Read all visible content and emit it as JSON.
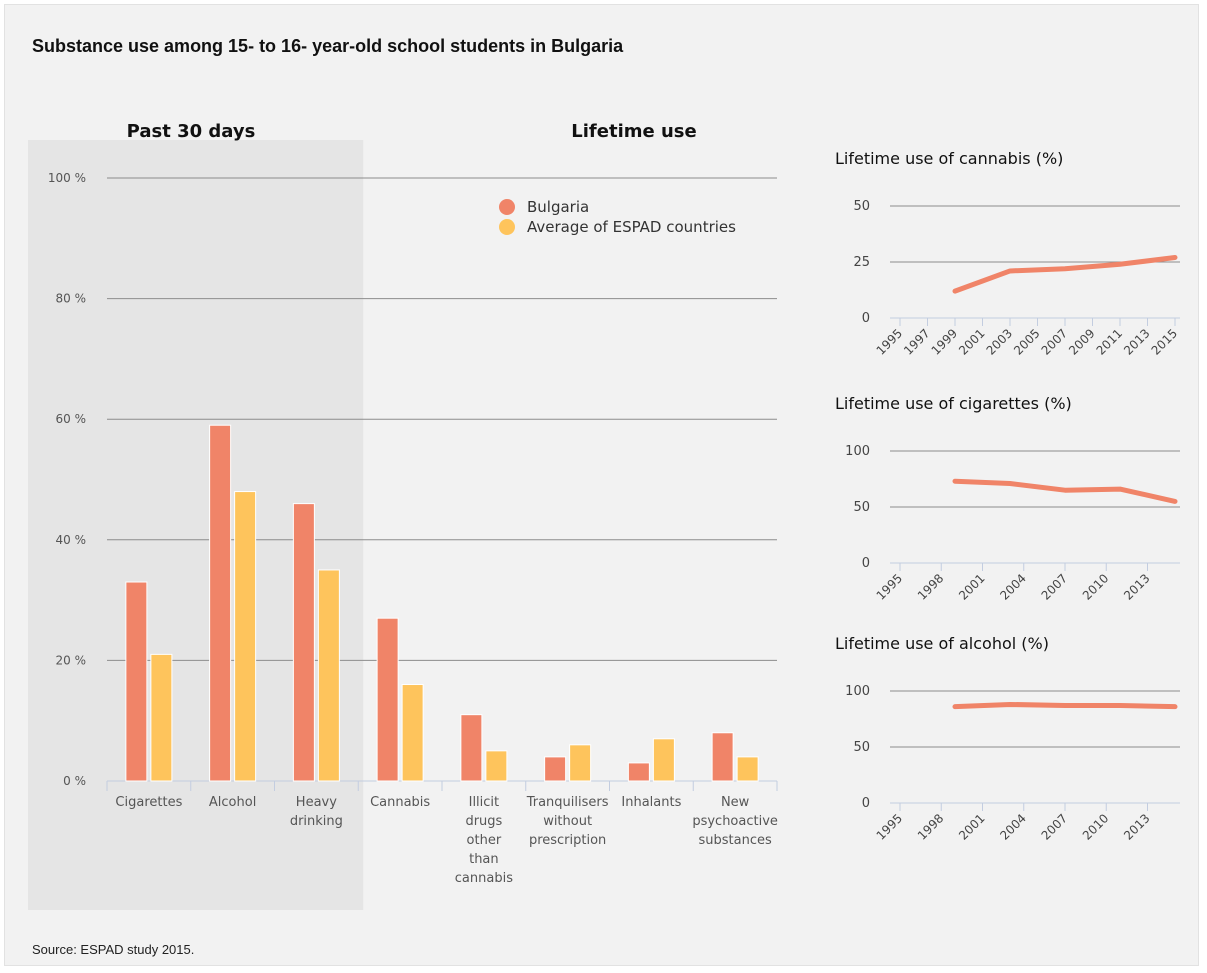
{
  "title": "Substance use among 15- to 16- year-old school students in Bulgaria",
  "source": "Source: ESPAD study 2015.",
  "colors": {
    "bulgaria": "#f08468",
    "espad": "#fec45c",
    "line": "#f08468",
    "shade": "#e5e5e5",
    "grid": "#8c8c8c",
    "axis": "#c3cde0"
  },
  "chart_data": [
    {
      "type": "bar",
      "section_labels": [
        "Past 30 days",
        "Lifetime use"
      ],
      "categories": [
        [
          "Cigarettes"
        ],
        [
          "Alcohol"
        ],
        [
          "Heavy",
          "drinking"
        ],
        [
          "Cannabis"
        ],
        [
          "Illicit",
          "drugs",
          "other",
          "than",
          "cannabis"
        ],
        [
          "Tranquilisers",
          "without",
          "prescription"
        ],
        [
          "Inhalants"
        ],
        [
          "New",
          "psychoactive",
          "substances"
        ]
      ],
      "series": [
        {
          "name": "Bulgaria",
          "values": [
            33,
            59,
            46,
            27,
            11,
            4,
            3,
            8
          ]
        },
        {
          "name": "Average of ESPAD countries",
          "values": [
            21,
            48,
            35,
            16,
            5,
            6,
            7,
            4
          ]
        }
      ],
      "y_ticks": [
        "0 %",
        "20 %",
        "40 %",
        "60 %",
        "80 %",
        "100 %"
      ],
      "ylim": [
        0,
        100
      ],
      "grid": true,
      "legend": "top-right"
    },
    {
      "type": "line",
      "title": "Lifetime use of cannabis (%)",
      "x_ticks": [
        "1995",
        "1997",
        "1999",
        "2001",
        "2003",
        "2005",
        "2007",
        "2009",
        "2011",
        "2013",
        "2015"
      ],
      "x": [
        1999,
        2003,
        2007,
        2011,
        2015
      ],
      "values": [
        12,
        21,
        22,
        24,
        27
      ],
      "y_ticks": [
        "0",
        "25",
        "50"
      ],
      "ylim": [
        0,
        50
      ],
      "xlim": [
        1995,
        2015
      ]
    },
    {
      "type": "line",
      "title": "Lifetime use of cigarettes (%)",
      "x_ticks": [
        "1995",
        "1998",
        "2001",
        "2004",
        "2007",
        "2010",
        "2013"
      ],
      "x": [
        1999,
        2003,
        2007,
        2011,
        2015
      ],
      "values": [
        73,
        71,
        65,
        66,
        55
      ],
      "y_ticks": [
        "0",
        "50",
        "100"
      ],
      "ylim": [
        0,
        100
      ],
      "xlim": [
        1995,
        2015
      ]
    },
    {
      "type": "line",
      "title": "Lifetime use of alcohol (%)",
      "x_ticks": [
        "1995",
        "1998",
        "2001",
        "2004",
        "2007",
        "2010",
        "2013"
      ],
      "x": [
        1999,
        2003,
        2007,
        2011,
        2015
      ],
      "values": [
        86,
        88,
        87,
        87,
        86
      ],
      "y_ticks": [
        "0",
        "50",
        "100"
      ],
      "ylim": [
        0,
        100
      ],
      "xlim": [
        1995,
        2015
      ]
    }
  ]
}
